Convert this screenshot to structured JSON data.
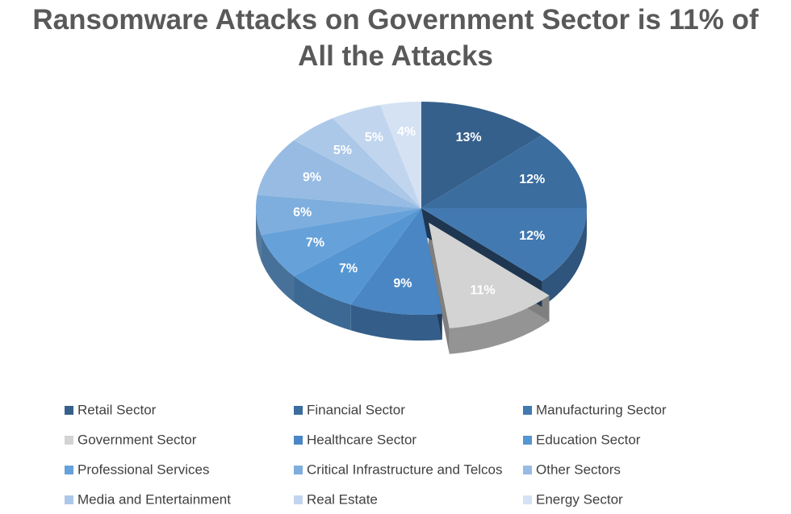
{
  "chart_data": {
    "type": "pie",
    "title": "Ransomware Attacks on Government Sector is 11% of All the Attacks",
    "categories": [
      "Retail Sector",
      "Financial Sector",
      "Manufacturing Sector",
      "Government Sector",
      "Healthcare Sector",
      "Education Sector",
      "Professional Services",
      "Critical Infrastructure and Telcos",
      "Other Sectors",
      "Media and Entertainment",
      "Real Estate",
      "Energy Sector"
    ],
    "values": [
      13,
      12,
      12,
      11,
      9,
      7,
      7,
      6,
      9,
      5,
      5,
      4
    ],
    "value_labels": [
      "13%",
      "12%",
      "12%",
      "11%",
      "9%",
      "7%",
      "7%",
      "6%",
      "9%",
      "5%",
      "5%",
      "4%"
    ],
    "colors": [
      "#36608c",
      "#3b6d9f",
      "#4379b1",
      "#d3d3d3",
      "#4a86c4",
      "#5596d2",
      "#66a1da",
      "#7eaedd",
      "#97bbe2",
      "#acc8e8",
      "#c1d5ee",
      "#d4e2f3"
    ],
    "exploded": "Government Sector"
  }
}
